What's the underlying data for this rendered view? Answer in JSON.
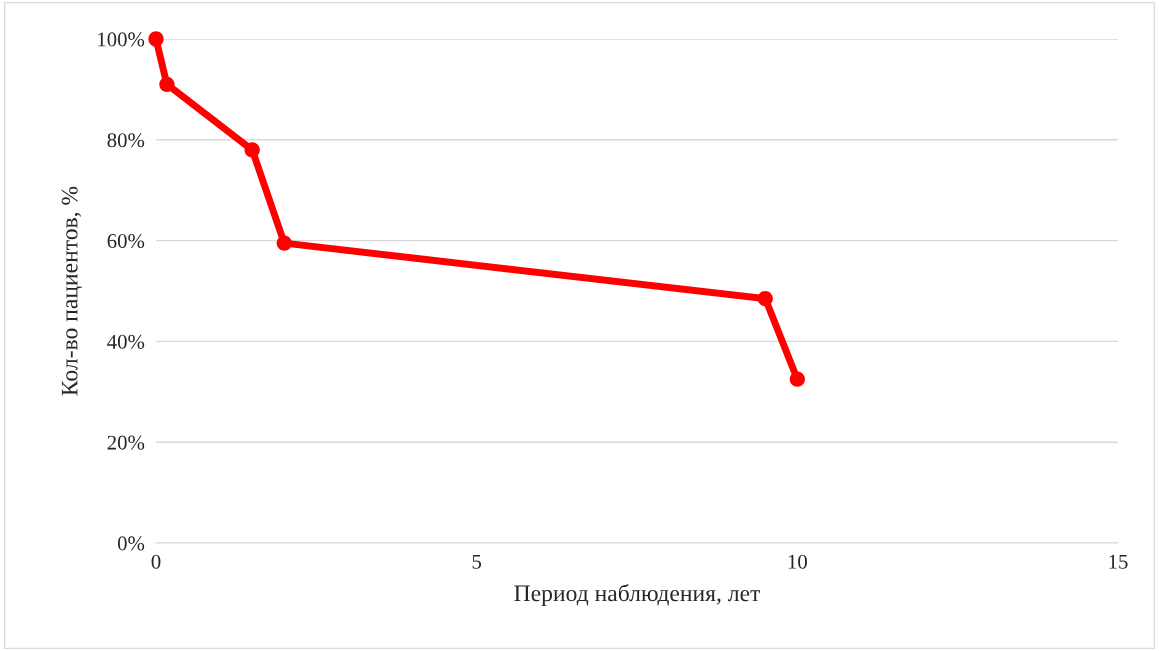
{
  "chart_data": {
    "type": "line",
    "xlabel": "Период наблюдения, лет",
    "ylabel": "Кол-во пациентов, %",
    "x": [
      0,
      0.17,
      1.5,
      2,
      9.5,
      10
    ],
    "series": [
      {
        "color": "#ff0000",
        "values": [
          100,
          91,
          78,
          59.5,
          48.5,
          32.5
        ]
      }
    ],
    "xlim": [
      0,
      15
    ],
    "xticks": [
      0,
      5,
      10,
      15
    ],
    "ylim": [
      0,
      100
    ],
    "yticks": [
      {
        "value": 0,
        "label": "0%"
      },
      {
        "value": 20,
        "label": "20%"
      },
      {
        "value": 40,
        "label": "40%"
      },
      {
        "value": 60,
        "label": "60%"
      },
      {
        "value": 80,
        "label": "80%"
      },
      {
        "value": 100,
        "label": "100%"
      }
    ],
    "grid": "y",
    "marker": "circle",
    "line_style": "solid"
  }
}
